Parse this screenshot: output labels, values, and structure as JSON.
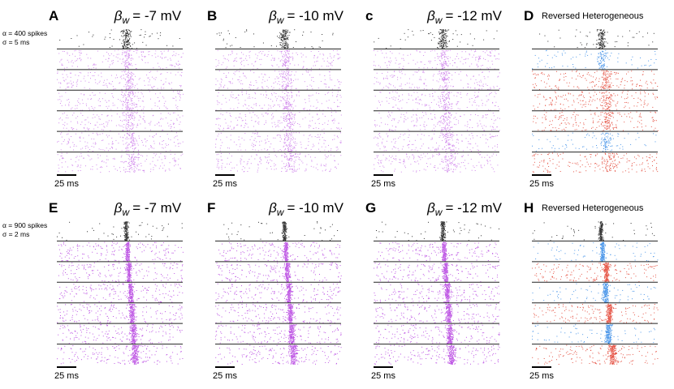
{
  "panels": [
    {
      "label": "A",
      "title": {
        "symbol": "β",
        "subscript": "w",
        "rest": "= -7 mV"
      },
      "scale_bar": "25 ms"
    },
    {
      "label": "B",
      "title": {
        "symbol": "β",
        "subscript": "w",
        "rest": "= -10 mV"
      },
      "scale_bar": "25 ms"
    },
    {
      "label": "c",
      "title": {
        "symbol": "β",
        "subscript": "w",
        "rest": "= -12 mV"
      },
      "scale_bar": "25 ms"
    },
    {
      "label": "D",
      "title_text": "Reversed Heterogeneous",
      "scale_bar": "25 ms"
    },
    {
      "label": "E",
      "title": {
        "symbol": "β",
        "subscript": "w",
        "rest": "= -7 mV"
      },
      "scale_bar": "25 ms"
    },
    {
      "label": "F",
      "title": {
        "symbol": "β",
        "subscript": "w",
        "rest": "= -10 mV"
      },
      "scale_bar": "25 ms"
    },
    {
      "label": "G",
      "title": {
        "symbol": "β",
        "subscript": "w",
        "rest": "= -12 mV"
      },
      "scale_bar": "25 ms"
    },
    {
      "label": "H",
      "title_text": "Reversed Heterogeneous",
      "scale_bar": "25 ms"
    }
  ],
  "row_notes": [
    [
      "α = 400 spikes",
      "σ = 5 ms"
    ],
    [
      "α = 900 spikes",
      "σ = 2 ms"
    ]
  ]
}
